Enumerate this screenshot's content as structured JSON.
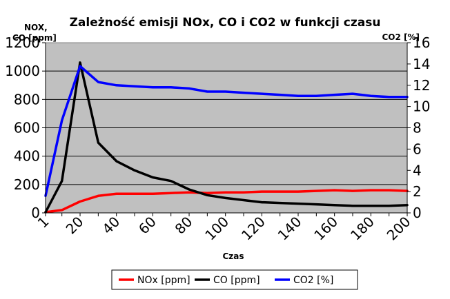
{
  "chart_data": {
    "type": "line",
    "title": "Zależność emisji NOx, CO i CO2 w funkcji czasu",
    "xlabel": "Czas",
    "ylabel": "NOX, CO [ppm]",
    "ylabel_right": "CO2 [%]",
    "ylim": [
      0,
      1200
    ],
    "ylim_right": [
      0,
      16
    ],
    "yticks": [
      "0",
      "200",
      "400",
      "600",
      "800",
      "1000",
      "1200"
    ],
    "yticks_right": [
      "0",
      "2",
      "4",
      "6",
      "8",
      "10",
      "12",
      "14",
      "16"
    ],
    "x": [
      1,
      10,
      20,
      30,
      40,
      50,
      60,
      70,
      80,
      90,
      100,
      110,
      120,
      130,
      140,
      150,
      160,
      170,
      180,
      190,
      200
    ],
    "xticks": [
      "1",
      "20",
      "40",
      "60",
      "80",
      "100",
      "120",
      "140",
      "160",
      "180",
      "200"
    ],
    "grid": true,
    "legend_position": "bottom",
    "series": [
      {
        "name": "NOx [ppm]",
        "axis": "left",
        "color": "#ff0000",
        "values": [
          5,
          20,
          80,
          120,
          135,
          135,
          135,
          140,
          145,
          140,
          145,
          145,
          150,
          150,
          150,
          155,
          160,
          155,
          160,
          160,
          155
        ]
      },
      {
        "name": "CO [ppm]",
        "axis": "left",
        "color": "#000000",
        "values": [
          5,
          225,
          1060,
          495,
          365,
          300,
          250,
          225,
          165,
          125,
          105,
          90,
          75,
          70,
          65,
          60,
          55,
          50,
          50,
          50,
          55
        ]
      },
      {
        "name": "CO2 [%]",
        "axis": "right",
        "color": "#0000ff",
        "values": [
          1.6,
          8.7,
          13.8,
          12.3,
          12.0,
          11.9,
          11.8,
          11.8,
          11.7,
          11.4,
          11.4,
          11.3,
          11.2,
          11.1,
          11.0,
          11.0,
          11.1,
          11.2,
          11.0,
          10.9,
          10.9
        ]
      }
    ]
  }
}
